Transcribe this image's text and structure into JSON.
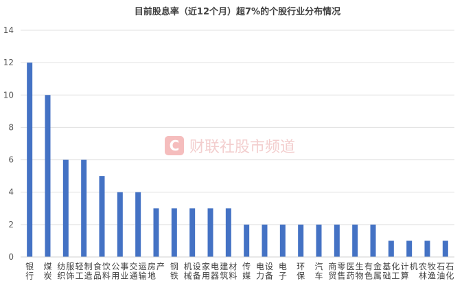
{
  "chart_data": {
    "type": "bar",
    "title": "目前股息率（近12个月）超7%的个股行业分布情况",
    "xlabel": "",
    "ylabel": "",
    "ylim": [
      0,
      14
    ],
    "yticks": [
      0,
      2,
      4,
      6,
      8,
      10,
      12,
      14
    ],
    "grid": true,
    "legend": "none",
    "bar_color": "#4472C4",
    "categories": [
      "银行",
      "煤炭",
      "纺织服饰",
      "轻工制造",
      "食品饮料",
      "公用事业",
      "交通运输",
      "房地产",
      "钢铁",
      "机械设备",
      "家用电器",
      "建筑材料",
      "传媒",
      "电力设备",
      "电子",
      "环保",
      "汽车",
      "商贸零售",
      "医药生物",
      "有色金属",
      "基础化工",
      "计算机",
      "农林牧渔",
      "石油石化"
    ],
    "values": [
      12,
      10,
      6,
      6,
      5,
      4,
      4,
      3,
      3,
      3,
      3,
      3,
      2,
      2,
      2,
      2,
      2,
      2,
      2,
      2,
      1,
      1,
      1,
      1
    ]
  },
  "watermark": {
    "text": "财联社股市频道",
    "logo_letter": "C",
    "color": "#e57373"
  }
}
